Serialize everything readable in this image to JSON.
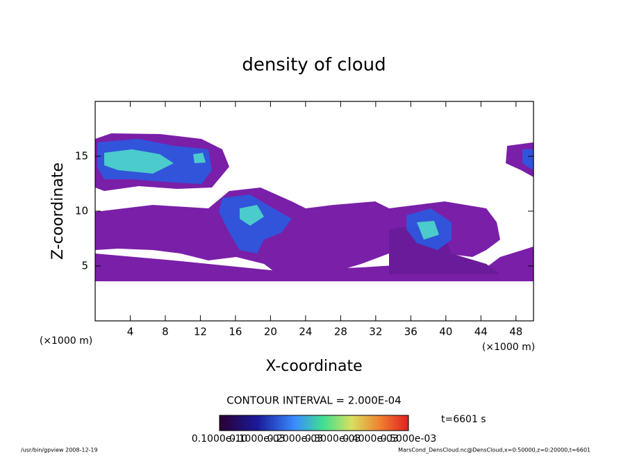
{
  "chart_data": {
    "type": "contour",
    "title": "density of cloud",
    "x_label": "X-coordinate",
    "y_label": "Z-coordinate",
    "x_unit": "(×1000 m)",
    "y_unit": "(×1000 m)",
    "xlim": [
      0,
      50
    ],
    "ylim": [
      0,
      20
    ],
    "xticks": [
      4,
      8,
      12,
      16,
      20,
      24,
      28,
      32,
      36,
      40,
      44,
      48
    ],
    "yticks": [
      5,
      10,
      15
    ],
    "contour_interval": "CONTOUR INTERVAL = 2.000E-04",
    "time_label": "t=6601 s",
    "colorbar_labels": [
      "0.1000e-10",
      "0.1000e-03",
      "0.2000e-03",
      "0.3000e-03",
      "0.4000e-03",
      "0.5000e-03"
    ],
    "footer_left": "/usr/bin/gpview  2008-12-19",
    "footer_right": "MarsCond_DensCloud.nc@DensCloud,x=0:50000,z=0:20000,t=6601"
  }
}
